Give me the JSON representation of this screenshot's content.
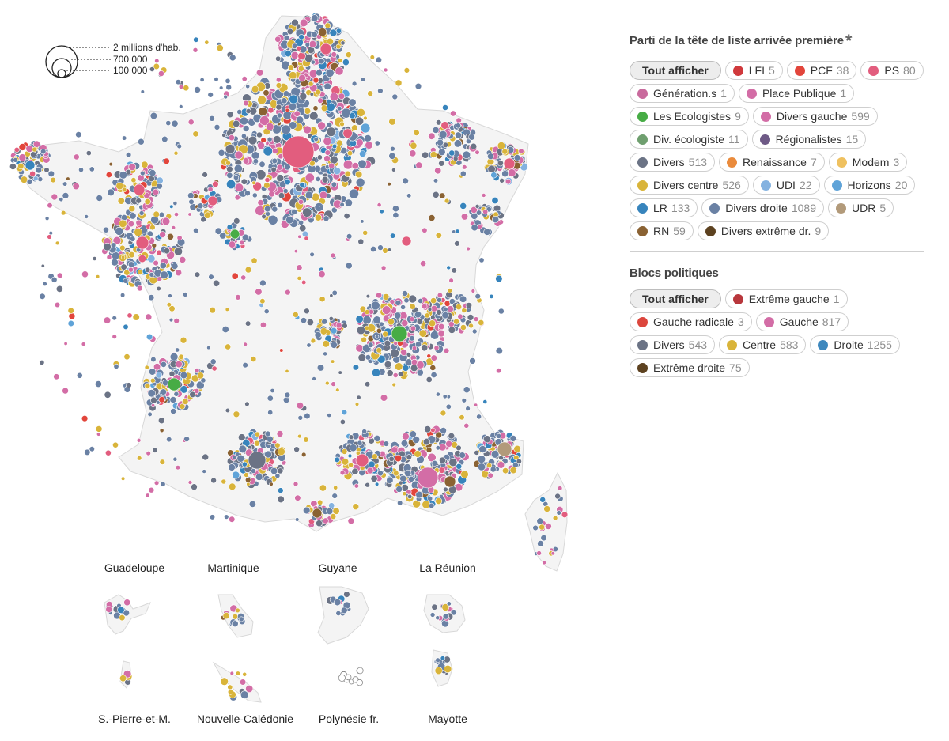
{
  "map": {
    "size_legend": {
      "labels": [
        "2 millions d'hab.",
        "700 000",
        "100 000"
      ]
    },
    "territories": [
      {
        "name": "Guadeloupe"
      },
      {
        "name": "Martinique"
      },
      {
        "name": "Guyane"
      },
      {
        "name": "La Réunion"
      },
      {
        "name": "S.-Pierre-et-M."
      },
      {
        "name": "Nouvelle-Calédonie"
      },
      {
        "name": "Polynésie fr."
      },
      {
        "name": "Mayotte"
      }
    ]
  },
  "filters": {
    "parties_title": "Parti de la tête de liste arrivée première",
    "parties_title_mark": "*",
    "show_all_label": "Tout afficher",
    "parties": [
      {
        "label": "LFI",
        "count": "5",
        "color": "#d0393c"
      },
      {
        "label": "PCF",
        "count": "38",
        "color": "#e2453b"
      },
      {
        "label": "PS",
        "count": "80",
        "color": "#e25d7e"
      },
      {
        "label": "Génération.s",
        "count": "1",
        "color": "#c96a9d"
      },
      {
        "label": "Place Publique",
        "count": "1",
        "color": "#d36da6"
      },
      {
        "label": "Les Ecologistes",
        "count": "9",
        "color": "#47ac45"
      },
      {
        "label": "Divers gauche",
        "count": "599",
        "color": "#d36da6"
      },
      {
        "label": "Div. écologiste",
        "count": "11",
        "color": "#6f9f6f"
      },
      {
        "label": "Régionalistes",
        "count": "15",
        "color": "#6e5a86"
      },
      {
        "label": "Divers",
        "count": "513",
        "color": "#6b7385"
      },
      {
        "label": "Renaissance",
        "count": "7",
        "color": "#ea8b3c"
      },
      {
        "label": "Modem",
        "count": "3",
        "color": "#efc160"
      },
      {
        "label": "Divers centre",
        "count": "526",
        "color": "#d9b43a"
      },
      {
        "label": "UDI",
        "count": "22",
        "color": "#84b2e0"
      },
      {
        "label": "Horizons",
        "count": "20",
        "color": "#5fa3d8"
      },
      {
        "label": "LR",
        "count": "133",
        "color": "#3784bc"
      },
      {
        "label": "Divers droite",
        "count": "1089",
        "color": "#6a81a4"
      },
      {
        "label": "UDR",
        "count": "5",
        "color": "#b29a7a"
      },
      {
        "label": "RN",
        "count": "59",
        "color": "#8a6233"
      },
      {
        "label": "Divers extrême dr.",
        "count": "9",
        "color": "#5d4220"
      }
    ],
    "blocs_title": "Blocs politiques",
    "blocs": [
      {
        "label": "Extrême gauche",
        "count": "1",
        "color": "#b8373c"
      },
      {
        "label": "Gauche radicale",
        "count": "3",
        "color": "#dc463d"
      },
      {
        "label": "Gauche",
        "count": "817",
        "color": "#d36da6"
      },
      {
        "label": "Divers",
        "count": "543",
        "color": "#6b7385"
      },
      {
        "label": "Centre",
        "count": "583",
        "color": "#d9b43a"
      },
      {
        "label": "Droite",
        "count": "1255",
        "color": "#3e88be"
      },
      {
        "label": "Extrême droite",
        "count": "75",
        "color": "#5d4220"
      }
    ]
  }
}
